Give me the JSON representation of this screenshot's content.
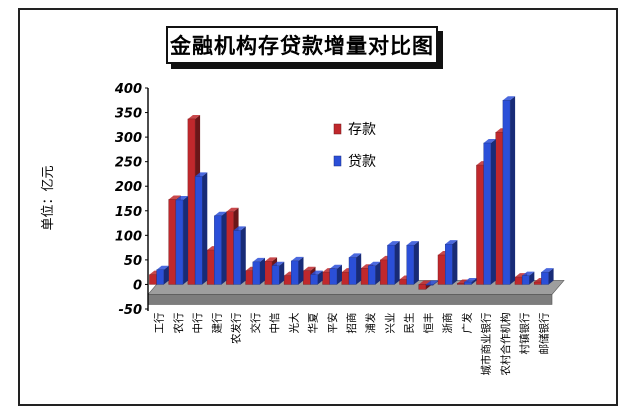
{
  "chart_data": {
    "type": "bar",
    "title": "金融机构存贷款增量对比图",
    "ylabel": "单位：亿元",
    "xlabel": "",
    "ylim": [
      -50,
      400
    ],
    "yticks": [
      -50,
      0,
      50,
      100,
      150,
      200,
      250,
      300,
      350,
      400
    ],
    "grid": false,
    "legend_position": "right",
    "categories": [
      "工行",
      "农行",
      "中行",
      "建行",
      "农发行",
      "交行",
      "中信",
      "光大",
      "华夏",
      "平安",
      "招商",
      "浦发",
      "兴业",
      "民生",
      "恒丰",
      "浙商",
      "广发",
      "城市商业银行",
      "农村合作机构",
      "村镇银行",
      "邮储银行"
    ],
    "series": [
      {
        "name": "存款",
        "color": "#c0282c",
        "values": [
          20,
          173,
          337,
          70,
          148,
          28,
          47,
          18,
          28,
          25,
          25,
          33,
          50,
          10,
          -10,
          60,
          2,
          243,
          310,
          15,
          5
        ]
      },
      {
        "name": "贷款",
        "color": "#2b4fd8",
        "values": [
          30,
          172,
          220,
          140,
          110,
          46,
          38,
          48,
          20,
          32,
          55,
          38,
          80,
          80,
          0,
          82,
          5,
          288,
          375,
          18,
          25
        ]
      }
    ]
  }
}
